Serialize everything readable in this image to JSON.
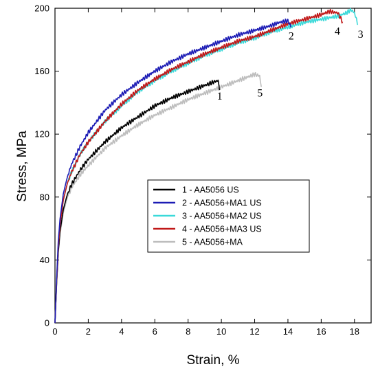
{
  "chart_data": {
    "type": "line",
    "xlabel": "Strain, %",
    "ylabel": "Stress, MPa",
    "xlim": [
      0,
      19
    ],
    "ylim": [
      0,
      200
    ],
    "xticks": [
      0,
      2,
      4,
      6,
      8,
      10,
      12,
      14,
      16,
      18
    ],
    "yticks": [
      0,
      40,
      80,
      120,
      160,
      200
    ],
    "grid": false,
    "legend_position": "center-right",
    "series": [
      {
        "name": "1 - AA5056 US",
        "label": "1",
        "color": "#000000",
        "x": [
          0,
          0.1,
          0.2,
          0.3,
          0.5,
          0.75,
          1,
          1.5,
          2,
          3,
          4,
          5,
          6,
          7,
          8,
          9,
          9.5,
          9.8,
          9.9
        ],
        "y": [
          0,
          25,
          45,
          58,
          72,
          82,
          88,
          97,
          104,
          115,
          124,
          131,
          138,
          143,
          147,
          151,
          153,
          154,
          148
        ]
      },
      {
        "name": "2 - AA5056+MA1 US",
        "label": "2",
        "color": "#1c1cb5",
        "x": [
          0,
          0.1,
          0.2,
          0.3,
          0.5,
          0.75,
          1,
          1.5,
          2,
          3,
          4,
          5,
          6,
          7,
          8,
          9,
          10,
          11,
          12,
          13,
          13.5,
          14,
          14.2
        ],
        "y": [
          0,
          28,
          52,
          66,
          82,
          93,
          101,
          112,
          121,
          135,
          145,
          153,
          160,
          166,
          171,
          175,
          179,
          183,
          186,
          189,
          191,
          192,
          188
        ]
      },
      {
        "name": "3 - AA5056+MA2 US",
        "label": "3",
        "color": "#3ad9d9",
        "x": [
          0,
          0.1,
          0.2,
          0.3,
          0.5,
          0.75,
          1,
          1.5,
          2,
          3,
          4,
          5,
          6,
          7,
          8,
          9,
          10,
          11,
          12,
          13,
          14,
          15,
          16,
          17,
          17.5,
          17.8,
          18.0,
          18.2
        ],
        "y": [
          0,
          26,
          48,
          62,
          78,
          89,
          96,
          107,
          115,
          128,
          138,
          147,
          154,
          160,
          165,
          170,
          174,
          178,
          181,
          185,
          188,
          191,
          193,
          195,
          197,
          199,
          197,
          190
        ]
      },
      {
        "name": "4 - AA5056+MA3 US",
        "label": "4",
        "color": "#c01818",
        "x": [
          0,
          0.1,
          0.2,
          0.3,
          0.5,
          0.75,
          1,
          1.5,
          2,
          3,
          4,
          5,
          6,
          7,
          8,
          9,
          10,
          11,
          12,
          13,
          14,
          15,
          16,
          16.5,
          17,
          17.3
        ],
        "y": [
          0,
          26,
          48,
          62,
          78,
          89,
          96,
          107,
          115,
          128,
          139,
          148,
          155,
          161,
          166,
          171,
          175,
          179,
          182,
          186,
          190,
          193,
          196,
          198,
          197,
          191
        ]
      },
      {
        "name": "5 - AA5056+MA",
        "label": "5",
        "color": "#bdbdbd",
        "x": [
          0,
          0.1,
          0.2,
          0.3,
          0.5,
          0.75,
          1,
          1.5,
          2,
          3,
          4,
          5,
          6,
          7,
          8,
          9,
          10,
          11,
          11.5,
          12,
          12.3,
          12.4
        ],
        "y": [
          0,
          24,
          44,
          56,
          70,
          80,
          86,
          94,
          100,
          111,
          119,
          126,
          132,
          137,
          142,
          146,
          150,
          154,
          156,
          158,
          157,
          150
        ]
      }
    ]
  }
}
